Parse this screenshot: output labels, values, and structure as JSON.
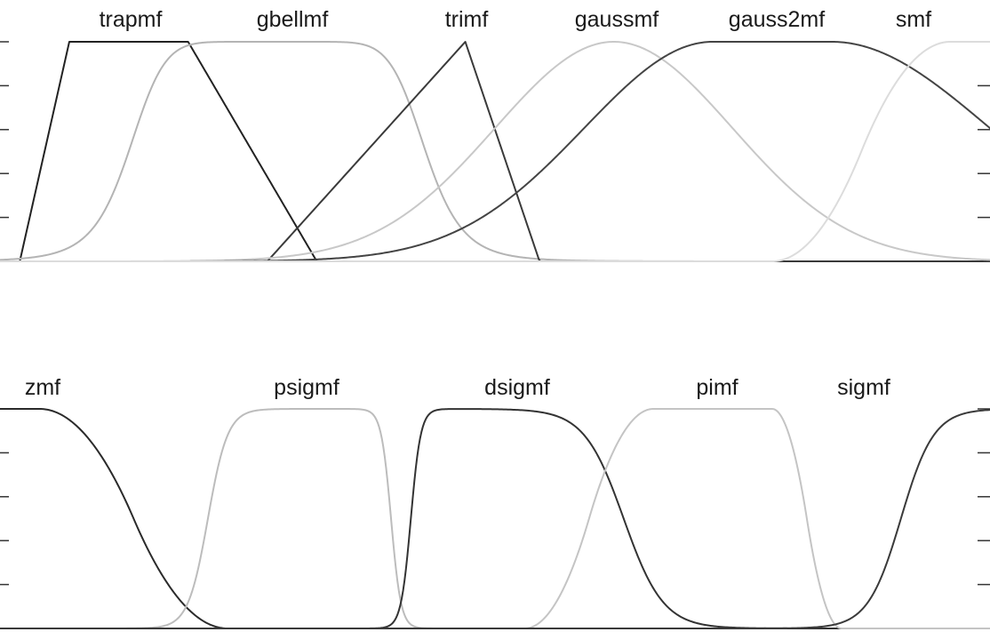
{
  "chart_data": [
    {
      "type": "line",
      "panel": "top",
      "xlim": [
        0,
        10
      ],
      "ylim": [
        0,
        1
      ],
      "grid": false,
      "series": [
        {
          "name": "trapmf",
          "function": "trapmf",
          "params": [
            0.2,
            0.7,
            1.9,
            3.2
          ],
          "color": "#222222"
        },
        {
          "name": "gbellmf",
          "function": "gbellmf",
          "params": [
            1.5,
            4,
            2.8
          ],
          "color": "#b4b4b4"
        },
        {
          "name": "trimf",
          "function": "trimf",
          "params": [
            2.7,
            4.7,
            5.45
          ],
          "color": "#3a3a3a"
        },
        {
          "name": "gaussmf",
          "function": "gaussmf",
          "params": [
            1.2,
            6.2
          ],
          "color": "#c8c8c8"
        },
        {
          "name": "gauss2mf",
          "function": "gauss2mf",
          "params": [
            1.3,
            7.2,
            1.6,
            8.4
          ],
          "color": "#444444"
        },
        {
          "name": "smf",
          "function": "smf",
          "params": [
            7.8,
            9.6
          ],
          "color": "#dcdcdc"
        }
      ]
    },
    {
      "type": "line",
      "panel": "bottom",
      "xlim": [
        0,
        10
      ],
      "ylim": [
        0,
        1
      ],
      "grid": false,
      "series": [
        {
          "name": "zmf",
          "function": "zmf",
          "params": [
            0.4,
            2.3
          ],
          "color": "#2a2a2a"
        },
        {
          "name": "psigmf",
          "function": "psigmf",
          "params": [
            10,
            2.1,
            -20,
            3.95
          ],
          "color": "#bcbcbc"
        },
        {
          "name": "dsigmf",
          "function": "dsigmf",
          "params": [
            20,
            4.15,
            5,
            6.3
          ],
          "color": "#333333"
        },
        {
          "name": "pimf",
          "function": "pimf",
          "params": [
            5.3,
            6.6,
            7.8,
            8.5
          ],
          "color": "#c4c4c4"
        },
        {
          "name": "sigmf",
          "function": "sigmf",
          "params": [
            6,
            9.1
          ],
          "color": "#3a3a3a"
        }
      ]
    }
  ]
}
